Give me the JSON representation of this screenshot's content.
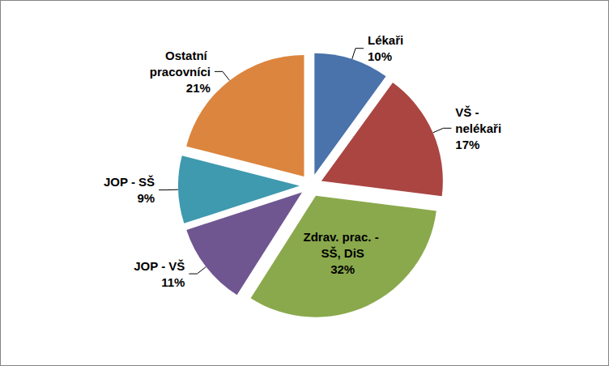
{
  "chart_data": {
    "type": "pie",
    "categories": [
      "Lékaři",
      "VŠ - nelékaři",
      "Zdrav. prac. - SŠ, DiS",
      "JOP - VŠ",
      "JOP - SŠ",
      "Ostatní pracovníci"
    ],
    "values": [
      10,
      17,
      32,
      11,
      9,
      21
    ],
    "value_labels": [
      "10%",
      "17%",
      "32%",
      "11%",
      "9%",
      "21%"
    ],
    "colors": [
      "#4a72ab",
      "#aa4542",
      "#8aa94c",
      "#6f5691",
      "#3f99af",
      "#dc853e"
    ],
    "data_labels": true
  }
}
